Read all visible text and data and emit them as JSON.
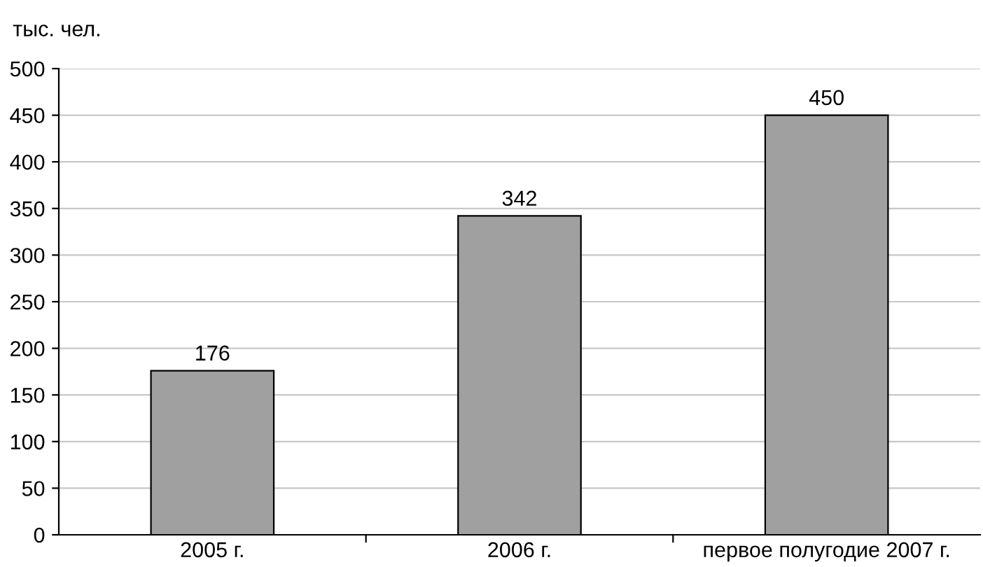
{
  "chart_data": {
    "type": "bar",
    "ylabel": "тыс. чел.",
    "categories": [
      "2005 г.",
      "2006 г.",
      "первое полугодие 2007 г."
    ],
    "values": [
      176,
      342,
      450
    ],
    "color": "#a0a0a0",
    "data_labels": true,
    "ylim": [
      0,
      500
    ],
    "yticks": [
      0,
      50,
      100,
      150,
      200,
      250,
      300,
      350,
      400,
      450,
      500
    ],
    "grid": "y"
  }
}
